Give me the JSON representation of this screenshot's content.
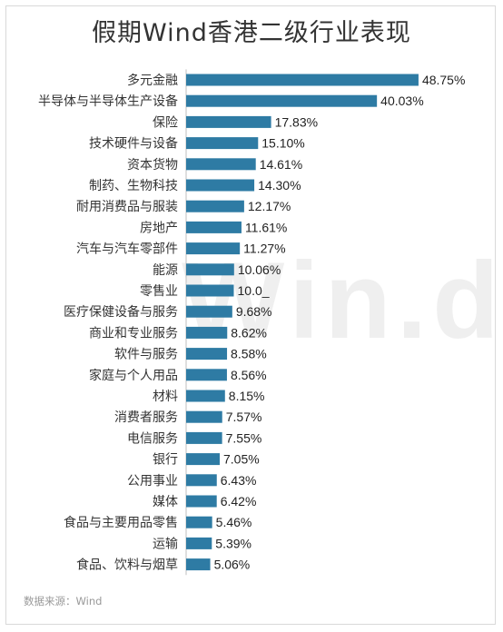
{
  "title": "假期Wind香港二级行业表现",
  "source": "数据来源：Wind",
  "watermark": "Win.d",
  "bar_color": "#2e7ba4",
  "chart_data": {
    "type": "bar",
    "orientation": "horizontal",
    "title": "假期Wind香港二级行业表现",
    "unit": "%",
    "categories": [
      "多元金融",
      "半导体与半导体生产设备",
      "保险",
      "技术硬件与设备",
      "资本货物",
      "制药、生物科技",
      "耐用消费品与服装",
      "房地产",
      "汽车与汽车零部件",
      "能源",
      "零售业",
      "医疗保健设备与服务",
      "商业和专业服务",
      "软件与服务",
      "家庭与个人用品",
      "材料",
      "消费者服务",
      "电信服务",
      "银行",
      "公用事业",
      "媒体",
      "食品与主要用品零售",
      "运输",
      "食品、饮料与烟草"
    ],
    "values": [
      48.75,
      40.03,
      17.83,
      15.1,
      14.61,
      14.3,
      12.17,
      11.61,
      11.27,
      10.06,
      10.0,
      9.68,
      8.62,
      8.58,
      8.56,
      8.15,
      7.57,
      7.55,
      7.05,
      6.43,
      6.42,
      5.46,
      5.39,
      5.06
    ],
    "value_labels": [
      "48.75%",
      "40.03%",
      "17.83%",
      "15.10%",
      "14.61%",
      "14.30%",
      "12.17%",
      "11.61%",
      "11.27%",
      "10.06%",
      "10.0_",
      "9.68%",
      "8.62%",
      "8.58%",
      "8.56%",
      "8.15%",
      "7.57%",
      "7.55%",
      "7.05%",
      "6.43%",
      "6.42%",
      "5.46%",
      "5.39%",
      "5.06%"
    ],
    "xlim": [
      0,
      50
    ],
    "grid": false,
    "legend": "none"
  }
}
